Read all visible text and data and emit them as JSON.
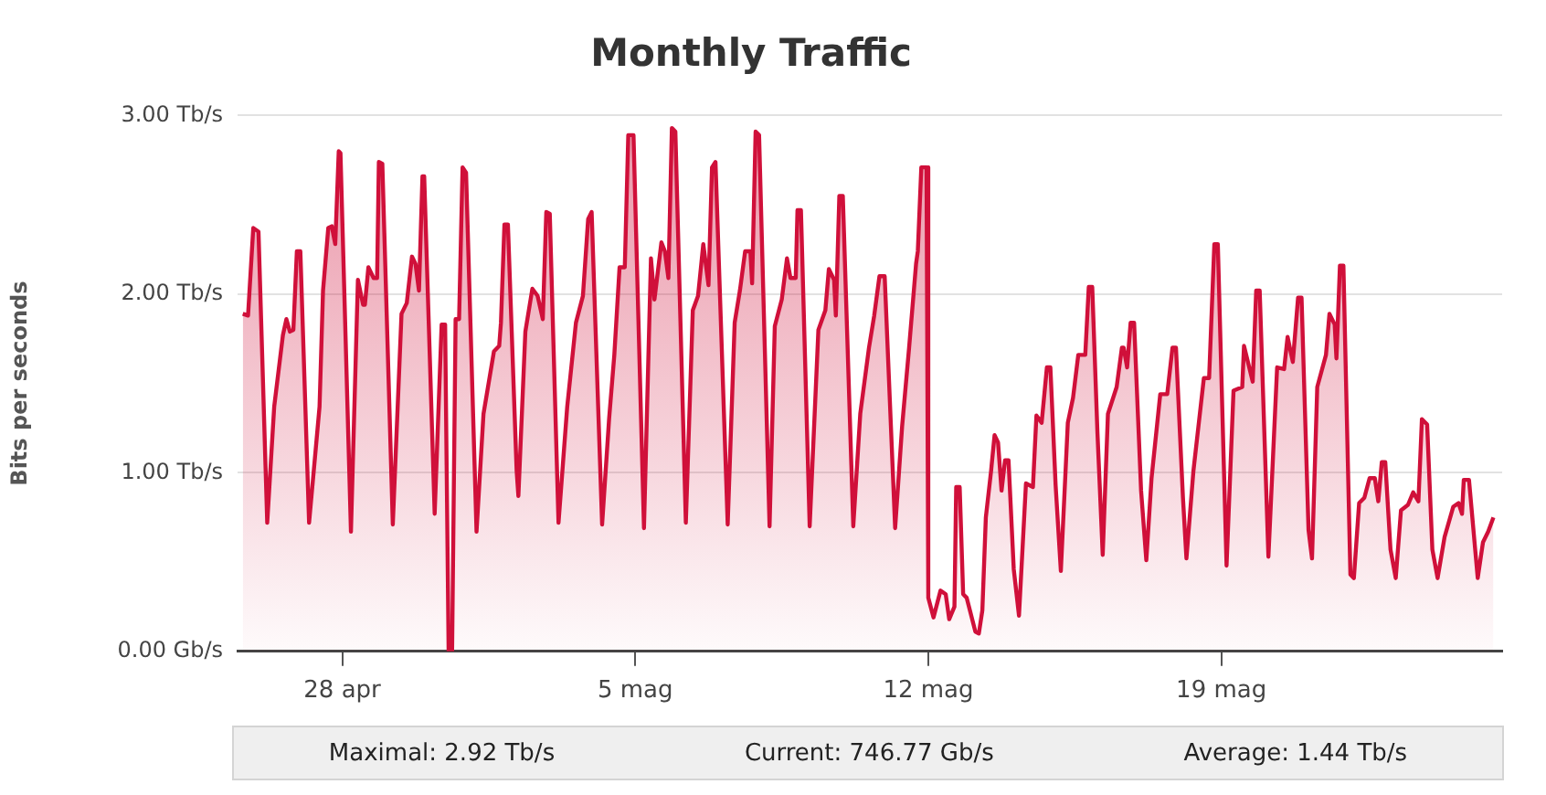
{
  "chart_data": {
    "type": "area",
    "title": "Monthly Traffic",
    "ylabel": "Bits per seconds",
    "x": [
      "--04-25T15:00",
      "--04-25T18:00",
      "--04-25T21:00",
      "--04-26T00:00",
      "--04-26T05:00",
      "--04-26T09:00",
      "--04-26T14:00",
      "--04-26T16:00",
      "--04-26T18:00",
      "--04-26T20:00",
      "--04-26T22:00",
      "--04-27T00:00",
      "--04-27T05:00",
      "--04-27T11:00",
      "--04-27T13:00",
      "--04-27T16:00",
      "--04-27T18:00",
      "--04-27T20:00",
      "--04-27T22:00",
      "--04-27T23:00",
      "--04-28T05:00",
      "--04-28T09:00",
      "--04-28T12:00",
      "--04-28T13:00",
      "--04-28T15:00",
      "--04-28T18:00",
      "--04-28T20:00",
      "--04-28T21:00",
      "--04-28T23:00",
      "--04-29T05:00",
      "--04-29T10:00",
      "--04-29T13:00",
      "--04-29T16:00",
      "--04-29T18:00",
      "--04-29T20:00",
      "--04-29T22:00",
      "--04-29T23:00",
      "--04-30T05:00",
      "--04-30T09:00",
      "--04-30T11:00",
      "--04-30T13:00",
      "--04-30T15:00",
      "--04-30T17:00",
      "--04-30T19:00",
      "--04-30T21:00",
      "--04-30T23:00",
      "--05-01T05:00",
      "--05-01T09:00",
      "--05-01T15:00",
      "--05-01T18:00",
      "--05-01T19:00",
      "--05-01T21:00",
      "--05-01T23:00",
      "--05-02T04:00",
      "--05-02T05:00",
      "--05-02T09:00",
      "--05-02T13:00",
      "--05-02T16:00",
      "--05-02T19:00",
      "--05-02T21:00",
      "--05-02T23:00",
      "--05-03T04:00",
      "--05-03T09:00",
      "--05-03T14:00",
      "--05-03T18:00",
      "--05-03T21:00",
      "--05-03T23:00",
      "--05-04T05:00",
      "--05-04T09:00",
      "--05-04T12:00",
      "--05-04T15:00",
      "--05-04T18:00",
      "--05-04T20:00",
      "--05-04T23:00",
      "--05-05T05:00",
      "--05-05T09:00",
      "--05-05T11:00",
      "--05-05T15:00",
      "--05-05T17:00",
      "--05-05T19:00",
      "--05-05T21:00",
      "--05-05T23:00",
      "--05-06T05:00",
      "--05-06T09:00",
      "--05-06T12:00",
      "--05-06T15:00",
      "--05-06T18:00",
      "--05-06T20:00",
      "--05-06T22:00",
      "--05-07T05:00",
      "--05-07T09:00",
      "--05-07T12:00",
      "--05-07T15:00",
      "--05-07T18:00",
      "--05-07T19:00",
      "--05-07T21:00",
      "--05-07T23:00",
      "--05-08T05:00",
      "--05-08T08:00",
      "--05-08T12:00",
      "--05-08T15:00",
      "--05-08T17:00",
      "--05-08T20:00",
      "--05-08T21:00",
      "--05-08T23:00",
      "--05-09T04:00",
      "--05-09T09:00",
      "--05-09T13:00",
      "--05-09T15:00",
      "--05-09T18:00",
      "--05-09T19:00",
      "--05-09T21:00",
      "--05-09T23:00",
      "--05-10T05:00",
      "--05-10T09:00",
      "--05-10T14:00",
      "--05-10T17:00",
      "--05-10T20:00",
      "--05-10T23:00",
      "--05-11T05:00",
      "--05-11T09:00",
      "--05-11T13:00",
      "--05-11T17:00",
      "--05-11T18:00",
      "--05-11T20:00",
      "--05-11T23:00",
      "--05-12T00:00",
      "--05-12T03:00",
      "--05-12T07:00",
      "--05-12T10:00",
      "--05-12T12:00",
      "--05-12T15:00",
      "--05-12T16:00",
      "--05-12T18:00",
      "--05-12T20:00",
      "--05-12T22:00",
      "--05-13T03:00",
      "--05-13T05:00",
      "--05-13T07:00",
      "--05-13T09:00",
      "--05-13T12:00",
      "--05-13T14:00",
      "--05-13T16:00",
      "--05-13T18:00",
      "--05-13T20:00",
      "--05-13T22:00",
      "--05-14T01:00",
      "--05-14T04:00",
      "--05-14T08:00",
      "--05-14T12:00",
      "--05-14T14:00",
      "--05-14T17:00",
      "--05-14T20:00",
      "--05-14T22:00",
      "--05-15T01:00",
      "--05-15T04:00",
      "--05-15T08:00",
      "--05-15T11:00",
      "--05-15T14:00",
      "--05-15T18:00",
      "--05-15T20:00",
      "--05-15T22:00",
      "--05-16T01:00",
      "--05-16T04:00",
      "--05-16T07:00",
      "--05-16T12:00",
      "--05-16T15:00",
      "--05-16T16:00",
      "--05-16T18:00",
      "--05-16T20:00",
      "--05-16T22:00",
      "--05-17T02:00",
      "--05-17T05:00",
      "--05-17T08:00",
      "--05-17T13:00",
      "--05-17T17:00",
      "--05-17T20:00",
      "--05-17T22:00",
      "--05-18T02:00",
      "--05-18T04:00",
      "--05-18T08:00",
      "--05-18T14:00",
      "--05-18T17:00",
      "--05-18T20:00",
      "--05-18T22:00",
      "--05-19T03:00",
      "--05-19T07:00",
      "--05-19T12:00",
      "--05-19T13:00",
      "--05-19T18:00",
      "--05-19T20:00",
      "--05-19T22:00",
      "--05-20T03:00",
      "--05-20T08:00",
      "--05-20T12:00",
      "--05-20T14:00",
      "--05-20T17:00",
      "--05-20T20:00",
      "--05-20T22:00",
      "--05-21T02:00",
      "--05-21T04:00",
      "--05-21T07:00",
      "--05-21T12:00",
      "--05-21T14:00",
      "--05-21T17:00",
      "--05-21T18:00",
      "--05-21T20:00",
      "--05-21T22:00",
      "--05-22T02:00",
      "--05-22T04:00",
      "--05-22T07:00",
      "--05-22T10:00",
      "--05-22T13:00",
      "--05-22T16:00",
      "--05-22T18:00",
      "--05-22T20:00",
      "--05-22T22:00",
      "--05-23T01:00",
      "--05-23T04:00",
      "--05-23T07:00",
      "--05-23T11:00",
      "--05-23T14:00",
      "--05-23T17:00",
      "--05-23T19:00",
      "--05-23T22:00",
      "--05-24T01:00",
      "--05-24T04:00",
      "--05-24T08:00",
      "--05-24T13:00",
      "--05-24T16:00",
      "--05-24T18:00",
      "--05-24T19:00",
      "--05-24T22:00",
      "--05-25T03:00",
      "--05-25T06:00",
      "--05-25T09:00",
      "--05-25T12:00"
    ],
    "series": [
      {
        "color": "#d0103a",
        "values": [
          1.89,
          1.88,
          2.37,
          2.35,
          0.72,
          1.37,
          1.77,
          1.86,
          1.79,
          1.8,
          2.24,
          2.24,
          0.72,
          1.37,
          2.02,
          2.37,
          2.38,
          2.28,
          2.8,
          2.79,
          0.67,
          2.08,
          1.94,
          1.94,
          2.15,
          2.09,
          2.09,
          2.74,
          2.73,
          0.71,
          1.89,
          1.95,
          2.21,
          2.17,
          2.02,
          2.66,
          2.66,
          0.77,
          1.83,
          1.83,
          0.0,
          0.0,
          1.86,
          1.86,
          2.71,
          2.68,
          0.67,
          1.33,
          1.68,
          1.71,
          1.84,
          2.39,
          2.39,
          1.01,
          0.87,
          1.79,
          2.03,
          1.99,
          1.86,
          2.46,
          2.45,
          0.72,
          1.37,
          1.84,
          1.99,
          2.42,
          2.46,
          0.71,
          1.3,
          1.66,
          2.15,
          2.15,
          2.89,
          2.89,
          0.69,
          2.2,
          1.97,
          2.29,
          2.24,
          2.09,
          2.93,
          2.91,
          0.72,
          1.91,
          1.99,
          2.28,
          2.05,
          2.71,
          2.74,
          0.71,
          1.84,
          2.02,
          2.24,
          2.24,
          2.06,
          2.91,
          2.89,
          0.7,
          1.82,
          1.97,
          2.2,
          2.09,
          2.09,
          2.47,
          2.47,
          0.7,
          1.8,
          1.91,
          2.14,
          2.08,
          1.88,
          2.55,
          2.55,
          0.7,
          1.33,
          1.7,
          1.88,
          2.1,
          2.1,
          0.69,
          1.26,
          1.7,
          2.17,
          2.24,
          2.71,
          2.71,
          0.3,
          0.19,
          0.34,
          0.32,
          0.18,
          0.25,
          0.92,
          0.92,
          0.32,
          0.3,
          0.11,
          0.1,
          0.23,
          0.75,
          1.01,
          1.21,
          1.17,
          0.9,
          1.07,
          1.07,
          0.46,
          0.2,
          0.94,
          0.92,
          1.32,
          1.28,
          1.59,
          1.59,
          0.93,
          0.45,
          1.28,
          1.42,
          1.66,
          1.66,
          2.04,
          2.04,
          1.22,
          0.54,
          1.33,
          1.48,
          1.7,
          1.7,
          1.59,
          1.84,
          1.84,
          0.9,
          0.51,
          0.97,
          1.44,
          1.44,
          1.7,
          1.7,
          0.86,
          0.52,
          1.01,
          1.53,
          1.53,
          2.28,
          2.28,
          0.48,
          1.46,
          1.48,
          1.71,
          1.51,
          2.02,
          2.02,
          0.53,
          1.59,
          1.58,
          1.76,
          1.62,
          1.98,
          1.98,
          0.68,
          0.52,
          1.48,
          1.66,
          1.89,
          1.83,
          1.64,
          2.16,
          2.16,
          0.43,
          0.41,
          0.83,
          0.86,
          0.97,
          0.97,
          0.84,
          1.06,
          1.06,
          0.57,
          0.41,
          0.79,
          0.82,
          0.89,
          0.84,
          1.3,
          1.27,
          0.57,
          0.41,
          0.64,
          0.81,
          0.83,
          0.77,
          0.96,
          0.96,
          0.41,
          0.61,
          0.67,
          0.75
        ]
      }
    ],
    "xlim": [
      "--04-25T12:00",
      "--05-25T17:00"
    ],
    "xticks": [
      {
        "value": "--04-28",
        "label": "28 apr"
      },
      {
        "value": "--05-05",
        "label": "5 mag"
      },
      {
        "value": "--05-12",
        "label": "12 mag"
      },
      {
        "value": "--05-19",
        "label": "19 mag"
      }
    ],
    "ylim": [
      0,
      3
    ],
    "yticks": [
      {
        "value": 0,
        "label": "0.00 Gb/s"
      },
      {
        "value": 1,
        "label": "1.00 Tb/s"
      },
      {
        "value": 2,
        "label": "2.00 Tb/s"
      },
      {
        "value": 3,
        "label": "3.00 Tb/s"
      }
    ],
    "grid": "y",
    "legend": false,
    "marker": "none",
    "line_style": "solid",
    "annotations": [
      "Maximal: 2.92 Tb/s",
      "Current: 746.77 Gb/s",
      "Average: 1.44 Tb/s"
    ]
  }
}
